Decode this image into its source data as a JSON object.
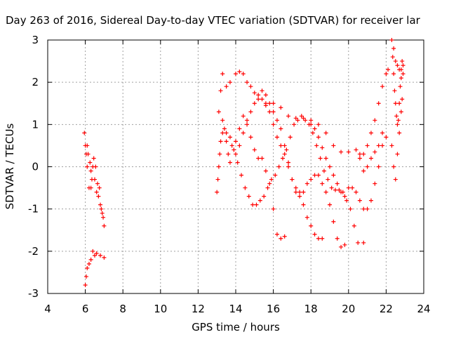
{
  "chart_data": {
    "type": "scatter",
    "title": "Day 263 of 2016, Sidereal Day-to-day VTEC variation (SDTVAR) for receiver lar",
    "xlabel": "GPS time / hours",
    "ylabel": "SDTVAR / TECUs",
    "xlim": [
      4,
      24
    ],
    "ylim": [
      -3,
      3
    ],
    "x_ticks": [
      "4",
      "6",
      "8",
      "10",
      "12",
      "14",
      "16",
      "18",
      "20",
      "22",
      "24"
    ],
    "y_ticks": [
      "-3",
      "-2",
      "-1",
      "0",
      "1",
      "2",
      "3"
    ],
    "grid": true,
    "marker": "+",
    "color": "#ff0000",
    "series": [
      {
        "points": [
          [
            5.95,
            0.8
          ],
          [
            6.0,
            0.5
          ],
          [
            6.05,
            0.3
          ],
          [
            6.1,
            0.0
          ],
          [
            6.2,
            -0.5
          ],
          [
            6.3,
            -0.5
          ],
          [
            6.35,
            -0.3
          ],
          [
            6.4,
            0.0
          ],
          [
            6.5,
            -0.3
          ],
          [
            6.6,
            -0.6
          ],
          [
            6.7,
            -0.7
          ],
          [
            6.8,
            -0.9
          ],
          [
            6.9,
            -1.1
          ],
          [
            7.0,
            -1.4
          ],
          [
            6.1,
            0.5
          ],
          [
            6.15,
            0.3
          ],
          [
            6.25,
            0.1
          ],
          [
            6.3,
            -0.1
          ],
          [
            6.45,
            0.2
          ],
          [
            6.55,
            0.0
          ],
          [
            6.65,
            -0.4
          ],
          [
            6.75,
            -0.5
          ],
          [
            6.85,
            -1.0
          ],
          [
            6.95,
            -1.2
          ],
          [
            6.0,
            -2.8
          ],
          [
            6.05,
            -2.6
          ],
          [
            6.1,
            -2.4
          ],
          [
            6.2,
            -2.3
          ],
          [
            6.3,
            -2.2
          ],
          [
            6.4,
            -2.0
          ],
          [
            6.5,
            -2.1
          ],
          [
            6.6,
            -2.05
          ],
          [
            6.8,
            -2.1
          ],
          [
            7.0,
            -2.15
          ]
        ]
      },
      {
        "points": [
          [
            13.0,
            -0.6
          ],
          [
            13.05,
            -0.3
          ],
          [
            13.1,
            0.0
          ],
          [
            13.15,
            0.3
          ],
          [
            13.2,
            0.6
          ],
          [
            13.3,
            0.8
          ],
          [
            13.4,
            0.9
          ],
          [
            13.5,
            0.6
          ],
          [
            13.6,
            0.3
          ],
          [
            13.7,
            0.1
          ],
          [
            13.8,
            0.5
          ],
          [
            14.0,
            0.6
          ],
          [
            14.2,
            0.9
          ],
          [
            14.4,
            1.2
          ],
          [
            14.6,
            1.0
          ],
          [
            14.8,
            0.7
          ],
          [
            15.0,
            0.4
          ],
          [
            15.2,
            0.2
          ],
          [
            15.4,
            0.2
          ],
          [
            15.6,
            -0.1
          ],
          [
            15.8,
            -0.4
          ],
          [
            16.0,
            -1.0
          ],
          [
            16.2,
            -1.6
          ],
          [
            16.4,
            -1.7
          ],
          [
            16.6,
            -1.65
          ],
          [
            13.1,
            1.3
          ],
          [
            13.2,
            1.8
          ],
          [
            13.3,
            2.2
          ],
          [
            13.5,
            1.9
          ],
          [
            13.7,
            2.0
          ],
          [
            14.0,
            2.2
          ],
          [
            14.2,
            2.25
          ],
          [
            14.4,
            2.2
          ],
          [
            14.6,
            2.0
          ],
          [
            14.8,
            1.9
          ],
          [
            15.0,
            1.75
          ],
          [
            15.2,
            1.6
          ],
          [
            15.4,
            1.6
          ],
          [
            15.6,
            1.5
          ],
          [
            15.8,
            1.3
          ],
          [
            16.0,
            1.0
          ],
          [
            16.2,
            0.7
          ],
          [
            16.4,
            0.5
          ],
          [
            16.6,
            0.3
          ],
          [
            16.8,
            0.0
          ],
          [
            17.0,
            -0.3
          ],
          [
            17.2,
            -0.6
          ],
          [
            17.4,
            -0.6
          ],
          [
            17.6,
            -0.6
          ],
          [
            17.8,
            -0.4
          ],
          [
            18.0,
            -0.3
          ],
          [
            18.2,
            -0.2
          ],
          [
            18.4,
            -0.2
          ],
          [
            18.6,
            -0.4
          ],
          [
            18.8,
            -0.6
          ],
          [
            19.0,
            -0.9
          ],
          [
            19.2,
            -1.3
          ],
          [
            19.4,
            -1.7
          ],
          [
            19.6,
            -1.9
          ],
          [
            19.8,
            -1.85
          ],
          [
            13.3,
            1.1
          ],
          [
            13.5,
            0.8
          ],
          [
            13.7,
            0.7
          ],
          [
            13.9,
            0.4
          ],
          [
            14.1,
            0.1
          ],
          [
            14.3,
            -0.2
          ],
          [
            14.5,
            -0.5
          ],
          [
            14.7,
            -0.7
          ],
          [
            14.9,
            -0.9
          ],
          [
            15.1,
            -0.9
          ],
          [
            15.3,
            -0.8
          ],
          [
            15.5,
            -0.7
          ],
          [
            15.7,
            -0.5
          ],
          [
            15.9,
            -0.3
          ],
          [
            16.1,
            -0.2
          ],
          [
            16.3,
            0.0
          ],
          [
            16.5,
            0.2
          ],
          [
            16.7,
            0.4
          ],
          [
            16.9,
            0.7
          ],
          [
            17.1,
            1.0
          ],
          [
            17.3,
            1.1
          ],
          [
            17.5,
            1.2
          ],
          [
            17.7,
            1.1
          ],
          [
            17.9,
            1.0
          ],
          [
            18.1,
            0.8
          ],
          [
            18.3,
            0.5
          ],
          [
            18.5,
            0.2
          ],
          [
            18.7,
            -0.1
          ],
          [
            18.9,
            -0.3
          ],
          [
            19.1,
            -0.5
          ],
          [
            19.3,
            -0.55
          ],
          [
            19.5,
            -0.55
          ],
          [
            19.7,
            -0.6
          ],
          [
            19.9,
            -0.8
          ],
          [
            20.1,
            -1.0
          ],
          [
            20.3,
            -1.4
          ],
          [
            20.5,
            -1.8
          ],
          [
            20.8,
            -1.8
          ],
          [
            14.0,
            0.3
          ],
          [
            14.2,
            0.5
          ],
          [
            14.4,
            0.8
          ],
          [
            14.6,
            1.1
          ],
          [
            14.8,
            1.3
          ],
          [
            15.0,
            1.5
          ],
          [
            15.2,
            1.7
          ],
          [
            15.4,
            1.8
          ],
          [
            15.6,
            1.7
          ],
          [
            15.8,
            1.5
          ],
          [
            16.0,
            1.3
          ],
          [
            16.2,
            1.1
          ],
          [
            16.4,
            0.9
          ],
          [
            16.6,
            0.5
          ],
          [
            16.8,
            0.1
          ],
          [
            17.0,
            -0.3
          ],
          [
            17.2,
            -0.5
          ],
          [
            17.4,
            -0.7
          ],
          [
            17.6,
            -0.9
          ],
          [
            17.8,
            -1.2
          ],
          [
            18.0,
            -1.4
          ],
          [
            18.2,
            -1.6
          ],
          [
            18.4,
            -1.7
          ],
          [
            18.6,
            -1.7
          ],
          [
            15.6,
            1.45
          ],
          [
            16.0,
            1.5
          ],
          [
            16.4,
            1.4
          ],
          [
            16.8,
            1.2
          ],
          [
            17.2,
            1.15
          ],
          [
            17.6,
            1.15
          ],
          [
            18.0,
            1.1
          ],
          [
            18.4,
            1.0
          ],
          [
            18.8,
            0.8
          ],
          [
            19.2,
            0.5
          ],
          [
            19.6,
            0.35
          ],
          [
            20.0,
            0.35
          ],
          [
            20.4,
            0.4
          ],
          [
            20.6,
            0.3
          ],
          [
            18.0,
            1.0
          ],
          [
            18.2,
            0.9
          ],
          [
            18.4,
            0.7
          ],
          [
            18.6,
            0.45
          ],
          [
            18.8,
            0.2
          ],
          [
            19.0,
            0.0
          ],
          [
            19.2,
            -0.2
          ],
          [
            19.4,
            -0.4
          ],
          [
            19.6,
            -0.6
          ],
          [
            19.8,
            -0.7
          ],
          [
            20.0,
            -0.5
          ],
          [
            20.2,
            -0.5
          ],
          [
            20.4,
            -0.6
          ],
          [
            20.6,
            -0.8
          ],
          [
            20.8,
            -1.0
          ],
          [
            21.0,
            -1.0
          ],
          [
            21.2,
            -0.8
          ],
          [
            21.4,
            -0.4
          ],
          [
            21.6,
            0.0
          ],
          [
            21.8,
            0.5
          ],
          [
            22.0,
            0.7
          ],
          [
            20.6,
            0.2
          ],
          [
            20.8,
            0.3
          ],
          [
            21.0,
            0.5
          ],
          [
            21.2,
            0.8
          ],
          [
            21.4,
            1.1
          ],
          [
            21.6,
            1.5
          ],
          [
            21.8,
            1.9
          ],
          [
            22.0,
            2.2
          ],
          [
            22.1,
            2.3
          ],
          [
            20.8,
            -0.1
          ],
          [
            21.0,
            0.0
          ],
          [
            21.2,
            0.2
          ],
          [
            21.4,
            0.35
          ],
          [
            21.6,
            0.5
          ],
          [
            21.8,
            0.8
          ],
          [
            22.3,
            3.0
          ],
          [
            22.35,
            2.6
          ],
          [
            22.4,
            2.2
          ],
          [
            22.45,
            1.8
          ],
          [
            22.5,
            1.5
          ],
          [
            22.55,
            1.2
          ],
          [
            22.6,
            1.0
          ],
          [
            22.65,
            1.1
          ],
          [
            22.7,
            1.5
          ],
          [
            22.75,
            1.9
          ],
          [
            22.8,
            2.3
          ],
          [
            22.85,
            2.5
          ],
          [
            22.9,
            2.2
          ],
          [
            22.4,
            2.8
          ],
          [
            22.5,
            2.5
          ],
          [
            22.6,
            2.4
          ],
          [
            22.7,
            2.3
          ],
          [
            22.8,
            2.1
          ],
          [
            22.9,
            2.4
          ],
          [
            22.3,
            0.5
          ],
          [
            22.4,
            0.0
          ],
          [
            22.5,
            -0.3
          ],
          [
            22.6,
            0.3
          ],
          [
            22.7,
            0.8
          ],
          [
            22.8,
            1.3
          ],
          [
            22.85,
            1.6
          ]
        ]
      }
    ]
  }
}
